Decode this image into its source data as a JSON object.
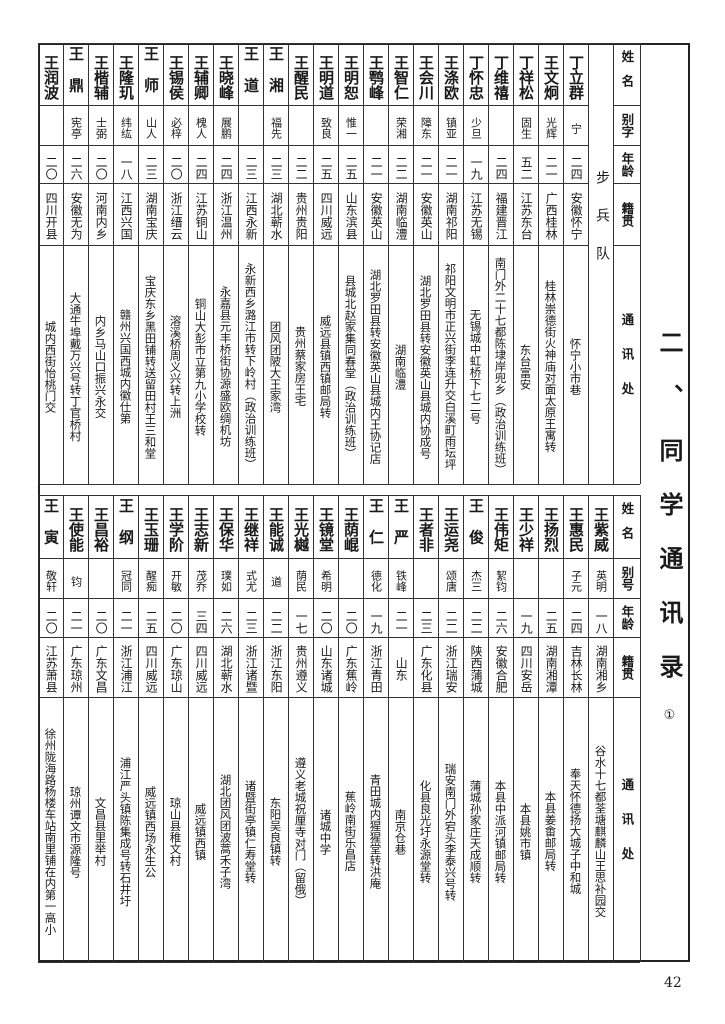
{
  "title": "二、同学通讯录",
  "footnote_marker": "①",
  "page_number": "42",
  "top_table": {
    "squad": "步兵队",
    "headers": [
      "姓名",
      "别字",
      "年龄",
      "籍贯",
      "通讯处"
    ],
    "rows": [
      {
        "name": "丁立群",
        "alias": "宁",
        "age": "二四",
        "origin": "安徽怀宁",
        "address": "怀宁小市巷"
      },
      {
        "name": "王文炯",
        "alias": "光辉",
        "age": "二一",
        "origin": "广西桂林",
        "address": "桂林崇德街火神庙对面太原王寓转"
      },
      {
        "name": "丁祥松",
        "alias": "固生",
        "age": "五二",
        "origin": "江苏东台",
        "address": "东台富安"
      },
      {
        "name": "丁维禧",
        "alias": "",
        "age": "二四",
        "origin": "福建晋江",
        "address": "南门外二十七都陈埭岸兜乡（政治训练班）"
      },
      {
        "name": "丁怀忠",
        "alias": "少旦",
        "age": "一九",
        "origin": "江苏无锡",
        "address": "无锡城中虹桥下七二号"
      },
      {
        "name": "王涤欧",
        "alias": "镇亚",
        "age": "二一",
        "origin": "湖南祁阳",
        "address": "祁阳文明市正兴街李连升交白溪町雨坛坪"
      },
      {
        "name": "王会川",
        "alias": "障东",
        "age": "二一",
        "origin": "安徽英山",
        "address": "湖北罗田县转安徽英山县城内协成号"
      },
      {
        "name": "王智仁",
        "alias": "荣湘",
        "age": "二二",
        "origin": "湖南临澧",
        "address": "湖南临澧"
      },
      {
        "name": "王鹗峰",
        "alias": "",
        "age": "二一",
        "origin": "安徽英山",
        "address": "湖北罗田县转安徽英山县城内王协记店"
      },
      {
        "name": "王明恕",
        "alias": "惟一",
        "age": "二五",
        "origin": "山东滨县",
        "address": "县城北赵家集同春堂（政治训练班）"
      },
      {
        "name": "王明道",
        "alias": "致良",
        "age": "二五",
        "origin": "四川威远",
        "address": "威远县镇西镇邮局转"
      },
      {
        "name": "王醒民",
        "alias": "",
        "age": "二二",
        "origin": "贵州贵阳",
        "address": "贵州蔡家房王宅"
      },
      {
        "name": "王湘",
        "alias": "福先",
        "age": "二三",
        "origin": "湖北蕲水",
        "address": "团风团陂大王家湾"
      },
      {
        "name": "王道",
        "alias": "",
        "age": "二三",
        "origin": "江西永新",
        "address": "永新西乡潞江市转下岭村（政治训练班）"
      },
      {
        "name": "王晓峰",
        "alias": "展鹏",
        "age": "二四",
        "origin": "浙江温州",
        "address": "永嘉县元丰桥街协源盛欧绸机坊"
      },
      {
        "name": "王辅卿",
        "alias": "槐人",
        "age": "二四",
        "origin": "江苏铜山",
        "address": "铜山大彭市立第九小学校转"
      },
      {
        "name": "王锡侯",
        "alias": "必梓",
        "age": "二〇",
        "origin": "浙江缙云",
        "address": "溶溪桥周义兴转上洲"
      },
      {
        "name": "王师",
        "alias": "山人",
        "age": "二三",
        "origin": "湖南宝庆",
        "address": "宝庆东乡黑田铺转送留田村王三和堂"
      },
      {
        "name": "王隆玑",
        "alias": "纬纮",
        "age": "一八",
        "origin": "江西兴国",
        "address": "赣州兴国西城内徽仕第"
      },
      {
        "name": "王楷辅",
        "alias": "士弼",
        "age": "二〇",
        "origin": "河南内乡",
        "address": "内乡马山口振兴永交"
      },
      {
        "name": "王鼎",
        "alias": "宪亭",
        "age": "二六",
        "origin": "安徽无为",
        "address": "大通牛埠戴万兴号转丁官桥村"
      },
      {
        "name": "王润波",
        "alias": "",
        "age": "二〇",
        "origin": "四川开县",
        "address": "城内西街怡桃门交"
      }
    ]
  },
  "bottom_table": {
    "headers": [
      "姓名",
      "别号",
      "年龄",
      "籍贯",
      "通讯处"
    ],
    "rows": [
      {
        "name": "王紫威",
        "alias": "英明",
        "age": "一八",
        "origin": "湖南湘乡",
        "address": "谷水十七都荃塘麒麟山王思补园交"
      },
      {
        "name": "王惠民",
        "alias": "子元",
        "age": "二四",
        "origin": "吉林长林",
        "address": "奉天怀德扬大城子中和城"
      },
      {
        "name": "王扬烈",
        "alias": "",
        "age": "二五",
        "origin": "湖南湘潭",
        "address": "本县姜畬邮局转"
      },
      {
        "name": "王少祥",
        "alias": "",
        "age": "一九",
        "origin": "四川安岳",
        "address": "本县姚市镇"
      },
      {
        "name": "王伟矩",
        "alias": "絜钧",
        "age": "二六",
        "origin": "安徽合肥",
        "address": "本县中派河镇邮局转"
      },
      {
        "name": "王俊",
        "alias": "杰三",
        "age": "二二",
        "origin": "陕西蒲城",
        "address": "蒲城孙家庄天成顺转"
      },
      {
        "name": "王运尧",
        "alias": "颂唐",
        "age": "二二",
        "origin": "浙江瑞安",
        "address": "瑞安南门外宕头李泰兴号转"
      },
      {
        "name": "王者非",
        "alias": "",
        "age": "二三",
        "origin": "广东化县",
        "address": "化县良光圩永源堂转"
      },
      {
        "name": "王严",
        "alias": "铁峰",
        "age": "二一",
        "origin": "山东",
        "address": "南京仓巷"
      },
      {
        "name": "王仁",
        "alias": "德化",
        "age": "一九",
        "origin": "浙江青田",
        "address": "青田城内猩猩堂转洪庵"
      },
      {
        "name": "王荫崐",
        "alias": "",
        "age": "二〇",
        "origin": "广东蕉岭",
        "address": "蕉岭南街乐昌店"
      },
      {
        "name": "王镜堂",
        "alias": "希明",
        "age": "二〇",
        "origin": "山东诸城",
        "address": "诸城中学"
      },
      {
        "name": "王光樾",
        "alias": "荫民",
        "age": "一七",
        "origin": "贵州遵义",
        "address": "遵义老城祝厘寺对门（留俄）"
      },
      {
        "name": "王能诚",
        "alias": "道",
        "age": "二二",
        "origin": "浙江东阳",
        "address": "东阳吴良镇转"
      },
      {
        "name": "王继祥",
        "alias": "式尤",
        "age": "二三",
        "origin": "浙江诸暨",
        "address": "诸暨街亭镇仁寿堂转"
      },
      {
        "name": "王保华",
        "alias": "璞如",
        "age": "二六",
        "origin": "湖北蕲水",
        "address": "湖北团风团波蒿禾子湾"
      },
      {
        "name": "王志新",
        "alias": "茂乔",
        "age": "三四",
        "origin": "四川威远",
        "address": "威远镇西镇"
      },
      {
        "name": "王学阶",
        "alias": "开敏",
        "age": "二〇",
        "origin": "广东琼山",
        "address": "琼山县稚文村"
      },
      {
        "name": "王玉珊",
        "alias": "醒痴",
        "age": "二五",
        "origin": "四川威远",
        "address": "威远镇西场永生公"
      },
      {
        "name": "王纲",
        "alias": "冠同",
        "age": "二一",
        "origin": "浙江浦江",
        "address": "浦江严头镇陈集成号转石井圩"
      },
      {
        "name": "王昌裕",
        "alias": "",
        "age": "二〇",
        "origin": "广东文昌",
        "address": "文昌县里举村"
      },
      {
        "name": "王使能",
        "alias": "钧",
        "age": "二一",
        "origin": "广东琼州",
        "address": "琼州谭文市源隆号"
      },
      {
        "name": "王寅",
        "alias": "敬轩",
        "age": "二〇",
        "origin": "江苏萧县",
        "address": "徐州陇海路杨楼车站南里铺在内第一高小"
      }
    ]
  }
}
